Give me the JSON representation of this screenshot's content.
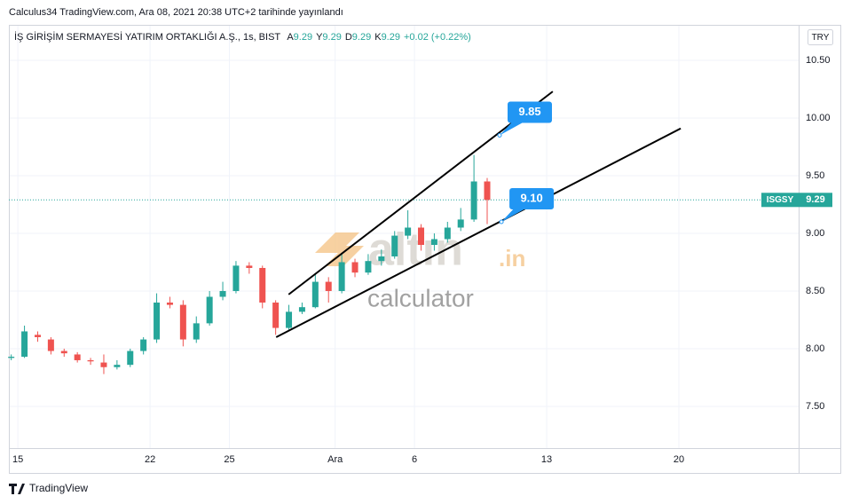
{
  "header": "Calculus34 TradingView.com, Ara 08, 2021 20:38 UTC+2 tarihinde yayınlandı",
  "currency": "TRY",
  "footer": "TradingView",
  "watermark": {
    "brand": "altın",
    "tld": ".in",
    "tagline": "calculator"
  },
  "chart_data": {
    "type": "candlestick",
    "symbol_line": "İŞ GİRİŞİM SERMAYESİ YATIRIM ORTAKLIĞI A.Ş., 1s, BIST",
    "ohlc_legend": [
      {
        "key": "A",
        "value": "9.29"
      },
      {
        "key": "Y",
        "value": "9.29"
      },
      {
        "key": "D",
        "value": "9.29"
      },
      {
        "key": "K",
        "value": "9.29"
      }
    ],
    "change": "+0.02 (+0.22%)",
    "up_color": "#26a69a",
    "down_color": "#ef5350",
    "x": [
      -0.25,
      0.25,
      0.75,
      1.25,
      1.75,
      2.25,
      2.75,
      3.25,
      3.75,
      4.25,
      4.75,
      5.25,
      5.75,
      6.25,
      6.75,
      7.25,
      7.75,
      8.25,
      8.75,
      9.25,
      9.75,
      10.25,
      10.75,
      11.25,
      11.75,
      12.25,
      12.75,
      13.25,
      13.75,
      14.25,
      14.75,
      15.25,
      15.75,
      16.25,
      16.75,
      17.25,
      17.75
    ],
    "open": [
      7.92,
      7.93,
      8.12,
      8.08,
      7.98,
      7.95,
      7.9,
      7.88,
      7.84,
      7.86,
      7.98,
      8.08,
      8.4,
      8.38,
      8.08,
      8.22,
      8.45,
      8.5,
      8.72,
      8.7,
      8.4,
      8.18,
      8.32,
      8.36,
      8.58,
      8.5,
      8.75,
      8.66,
      8.76,
      8.8,
      8.98,
      9.05,
      8.9,
      8.95,
      9.05,
      9.12,
      9.45
    ],
    "high": [
      7.95,
      8.2,
      8.15,
      8.1,
      8.0,
      7.97,
      7.92,
      7.95,
      7.9,
      8.0,
      8.1,
      8.48,
      8.45,
      8.42,
      8.28,
      8.5,
      8.58,
      8.76,
      8.75,
      8.72,
      8.42,
      8.38,
      8.4,
      8.65,
      8.62,
      8.82,
      8.78,
      8.82,
      8.86,
      9.02,
      9.2,
      9.08,
      9.0,
      9.1,
      9.22,
      9.68,
      9.48
    ],
    "low": [
      7.9,
      7.92,
      8.06,
      7.95,
      7.93,
      7.88,
      7.86,
      7.78,
      7.82,
      7.84,
      7.95,
      8.05,
      8.35,
      8.02,
      8.05,
      8.2,
      8.42,
      8.48,
      8.65,
      8.35,
      8.12,
      8.15,
      8.3,
      8.35,
      8.4,
      8.48,
      8.62,
      8.64,
      8.72,
      8.78,
      8.95,
      8.85,
      8.85,
      8.92,
      9.02,
      9.1,
      9.08
    ],
    "close": [
      7.93,
      8.15,
      8.1,
      7.98,
      7.96,
      7.9,
      7.89,
      7.84,
      7.86,
      7.98,
      8.08,
      8.4,
      8.38,
      8.08,
      8.22,
      8.45,
      8.5,
      8.72,
      8.7,
      8.4,
      8.18,
      8.32,
      8.36,
      8.58,
      8.5,
      8.75,
      8.66,
      8.76,
      8.8,
      8.98,
      9.05,
      8.9,
      8.95,
      9.05,
      9.12,
      9.45,
      9.29
    ],
    "last_price": {
      "symbol": "ISGSY",
      "value": 9.29,
      "label": "9.29",
      "color": "#26a69a"
    },
    "trend_lines": [
      {
        "x": [
          10.24,
          20.23
        ],
        "y": [
          8.47,
          10.23
        ]
      },
      {
        "x": [
          9.77,
          25.07
        ],
        "y": [
          8.1,
          9.91
        ]
      }
    ],
    "callouts": [
      {
        "x": 18.22,
        "value": 9.85,
        "label": "9.85"
      },
      {
        "x": 18.29,
        "value": 9.1,
        "label": "9.10"
      }
    ],
    "callout_color": "#2196f3",
    "xlim": [
      -0.34,
      29.53
    ],
    "xticks": [
      {
        "value": 0,
        "label": "15"
      },
      {
        "value": 5,
        "label": "22"
      },
      {
        "value": 8,
        "label": "25"
      },
      {
        "value": 12,
        "label": "Ara"
      },
      {
        "value": 15,
        "label": "6"
      },
      {
        "value": 20,
        "label": "13"
      },
      {
        "value": 25,
        "label": "20"
      }
    ],
    "ylim": [
      7.138,
      10.808
    ],
    "yticks": [
      {
        "value": 7.5,
        "label": "7.50"
      },
      {
        "value": 8.0,
        "label": "8.00"
      },
      {
        "value": 8.5,
        "label": "8.50"
      },
      {
        "value": 9.0,
        "label": "9.00"
      },
      {
        "value": 9.5,
        "label": "9.50"
      },
      {
        "value": 10.0,
        "label": "10.00"
      },
      {
        "value": 10.5,
        "label": "10.50"
      }
    ],
    "grid": true
  }
}
